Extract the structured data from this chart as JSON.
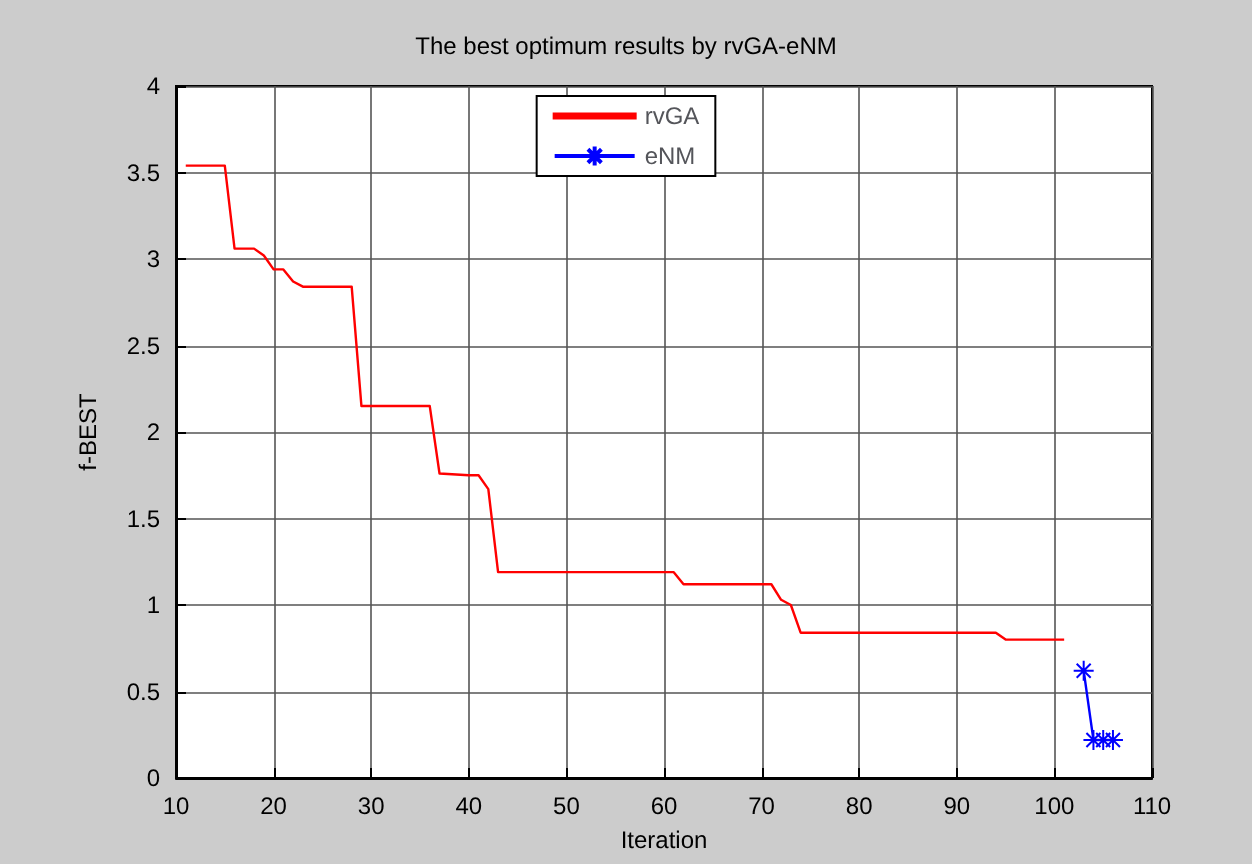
{
  "chart_data": {
    "type": "line",
    "title": "The best optimum results by rvGA-eNM",
    "xlabel": "Iteration",
    "ylabel": "f-BEST",
    "xlim": [
      10,
      110
    ],
    "xticks": [
      10,
      20,
      30,
      40,
      50,
      60,
      70,
      80,
      90,
      100,
      110
    ],
    "ylim": [
      0,
      4
    ],
    "yticks": [
      0,
      0.5,
      1,
      1.5,
      2,
      2.5,
      3,
      3.5,
      4
    ],
    "grid": true,
    "legend": "top",
    "series": [
      {
        "name": "rvGA",
        "color": "#ff0000",
        "marker": "none",
        "x": [
          11,
          15,
          16,
          18,
          19,
          20,
          21,
          22,
          23,
          28,
          29,
          36,
          37,
          40,
          41,
          42,
          43,
          61,
          62,
          71,
          72,
          73,
          74,
          94,
          95,
          101
        ],
        "values": [
          3.54,
          3.54,
          3.06,
          3.06,
          3.02,
          2.94,
          2.94,
          2.87,
          2.84,
          2.84,
          2.15,
          2.15,
          1.76,
          1.75,
          1.75,
          1.67,
          1.19,
          1.19,
          1.12,
          1.12,
          1.03,
          1.0,
          0.84,
          0.84,
          0.8,
          0.8
        ]
      },
      {
        "name": "eNM",
        "color": "#0000ff",
        "marker": "cross",
        "x": [
          103,
          104,
          105,
          106
        ],
        "values": [
          0.62,
          0.22,
          0.22,
          0.22
        ]
      }
    ]
  }
}
